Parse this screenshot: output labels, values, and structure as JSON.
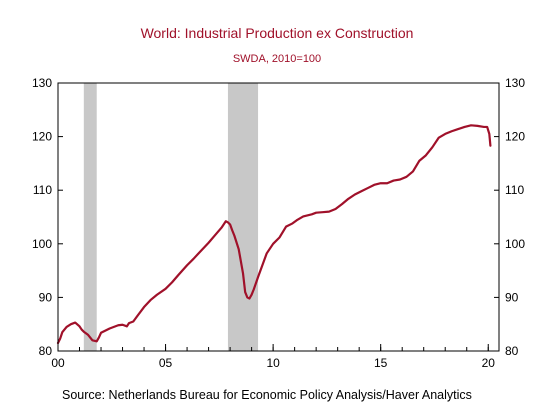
{
  "chart_data": {
    "type": "line",
    "title": "World: Industrial Production ex Construction",
    "subtitle": "SWDA, 2010=100",
    "source": "Source:  Netherlands Bureau for Economic Policy Analysis/Haver Analytics",
    "ylim": [
      80,
      130
    ],
    "xlim": [
      2000.0,
      2020.5
    ],
    "yticks": [
      80,
      90,
      100,
      110,
      120,
      130
    ],
    "xticks": [
      {
        "value": 2000.0,
        "label": "00"
      },
      {
        "value": 2005.0,
        "label": "05"
      },
      {
        "value": 2010.0,
        "label": "10"
      },
      {
        "value": 2015.0,
        "label": "15"
      },
      {
        "value": 2020.0,
        "label": "20"
      }
    ],
    "recessions": [
      {
        "start": 2001.2,
        "end": 2001.8
      },
      {
        "start": 2007.9,
        "end": 2009.3
      }
    ],
    "colors": {
      "line": "#a0112a",
      "recession": "#c8c8c8",
      "title": "#a0112a"
    },
    "grid": false,
    "series": [
      {
        "x": [
          2000.0,
          2000.1,
          2000.2,
          2000.4,
          2000.6,
          2000.8,
          2001.0,
          2001.1,
          2001.2,
          2001.4,
          2001.6,
          2001.8,
          2001.9,
          2002.0,
          2002.2,
          2002.4,
          2002.6,
          2002.8,
          2003.0,
          2003.2,
          2003.3,
          2003.5,
          2003.7,
          2004.0,
          2004.3,
          2004.6,
          2005.0,
          2005.3,
          2005.6,
          2006.0,
          2006.3,
          2006.6,
          2007.0,
          2007.3,
          2007.6,
          2007.8,
          2007.9,
          2008.0,
          2008.1,
          2008.2,
          2008.4,
          2008.6,
          2008.7,
          2008.8,
          2008.9,
          2009.0,
          2009.1,
          2009.3,
          2009.5,
          2009.7,
          2010.0,
          2010.3,
          2010.6,
          2010.9,
          2011.1,
          2011.4,
          2011.8,
          2012.0,
          2012.3,
          2012.6,
          2012.9,
          2013.2,
          2013.5,
          2013.8,
          2014.1,
          2014.4,
          2014.7,
          2015.0,
          2015.3,
          2015.6,
          2015.9,
          2016.2,
          2016.5,
          2016.8,
          2017.1,
          2017.4,
          2017.7,
          2018.0,
          2018.3,
          2018.6,
          2018.9,
          2019.2,
          2019.5,
          2019.8,
          2019.95,
          2020.05,
          2020.1
        ],
        "values": [
          81.5,
          82.3,
          83.5,
          84.5,
          85.0,
          85.3,
          84.6,
          84.0,
          83.6,
          83.0,
          82.0,
          81.8,
          82.5,
          83.4,
          83.8,
          84.2,
          84.5,
          84.8,
          84.9,
          84.6,
          85.2,
          85.5,
          86.6,
          88.2,
          89.5,
          90.5,
          91.6,
          92.8,
          94.2,
          96.0,
          97.2,
          98.5,
          100.2,
          101.6,
          103.0,
          104.2,
          104.0,
          103.6,
          102.5,
          101.5,
          99.0,
          94.5,
          91.0,
          90.0,
          89.8,
          90.5,
          91.5,
          93.8,
          96.0,
          98.2,
          100.0,
          101.2,
          103.2,
          103.8,
          104.4,
          105.1,
          105.5,
          105.8,
          105.9,
          106.0,
          106.5,
          107.4,
          108.4,
          109.2,
          109.8,
          110.4,
          111.0,
          111.3,
          111.3,
          111.8,
          112.0,
          112.5,
          113.5,
          115.5,
          116.5,
          118.0,
          119.8,
          120.5,
          121.0,
          121.4,
          121.8,
          122.1,
          122.0,
          121.8,
          121.8,
          120.5,
          118.3
        ]
      }
    ]
  }
}
